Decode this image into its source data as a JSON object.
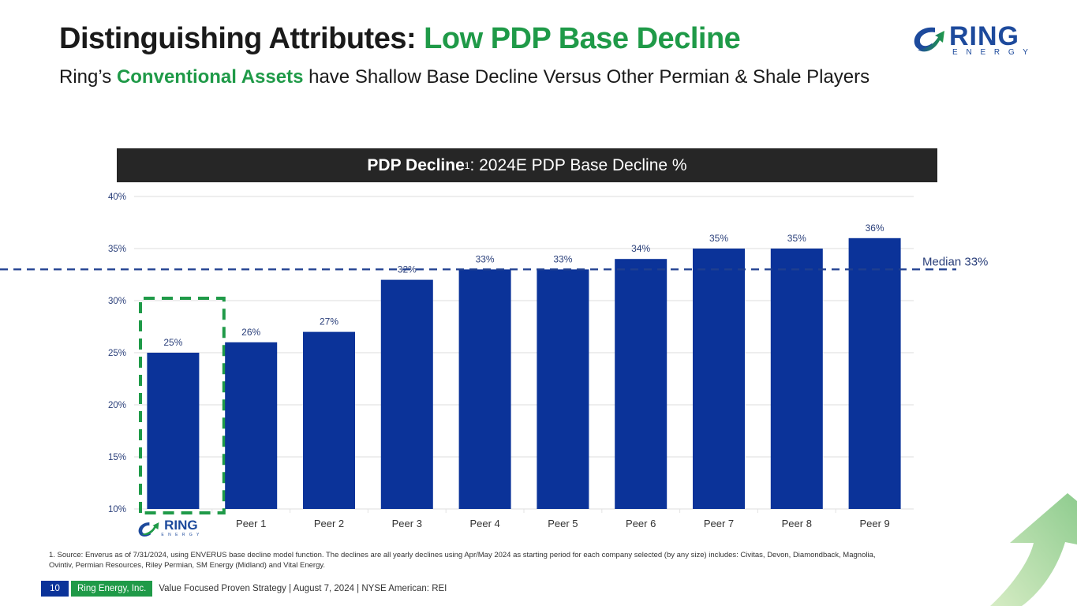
{
  "header": {
    "title_prefix": "Distinguishing Attributes: ",
    "title_accent": "Low PDP Base Decline",
    "subtitle_prefix": "Ring’s ",
    "subtitle_accent": "Conventional Assets",
    "subtitle_suffix": " have Shallow Base Decline Versus Other Permian & Shale Players"
  },
  "logo": {
    "name": "RING",
    "tagline": "E N E R G Y",
    "icon": "ring-arrow-logo-icon"
  },
  "chart_header": {
    "bold": "PDP Decline",
    "superscript": "1",
    "rest": ": 2024E PDP Base Decline %"
  },
  "chart_data": {
    "type": "bar",
    "title": "PDP Decline1: 2024E PDP Base Decline %",
    "categories": [
      "Ring Energy",
      "Peer 1",
      "Peer 2",
      "Peer 3",
      "Peer 4",
      "Peer 5",
      "Peer 6",
      "Peer 7",
      "Peer 8",
      "Peer 9"
    ],
    "values": [
      25,
      26,
      27,
      32,
      33,
      33,
      34,
      35,
      35,
      36
    ],
    "value_labels": [
      "25%",
      "26%",
      "27%",
      "32%",
      "33%",
      "33%",
      "34%",
      "35%",
      "35%",
      "36%"
    ],
    "unit": "%",
    "ylim": [
      10,
      40
    ],
    "yticks": [
      10,
      15,
      20,
      25,
      30,
      35,
      40
    ],
    "ytick_labels": [
      "10%",
      "15%",
      "20%",
      "25%",
      "30%",
      "35%",
      "40%"
    ],
    "xlabel": "",
    "ylabel": "",
    "grid": true,
    "bar_color": "#0b3399",
    "highlight_category": "Ring Energy",
    "highlight_color": "#1f9a48",
    "reference_line": {
      "label": "Median 33%",
      "value": 33,
      "color": "#1f3f8f"
    },
    "legend": "none"
  },
  "footnote": "1. Source: Enverus as of 7/31/2024, using ENVERUS base decline model function. The declines are all yearly declines using Apr/May 2024 as starting period for each company selected (by any size) includes: Civitas, Devon, Diamondback, Magnolia, Ovintiv, Permian Resources, Riley Permian, SM Energy (Midland) and Vital Energy.",
  "footer": {
    "page_number": "10",
    "company": "Ring Energy, Inc.",
    "tagline": "Value Focused Proven Strategy  |  August 7, 2024  |  NYSE American: REI"
  }
}
